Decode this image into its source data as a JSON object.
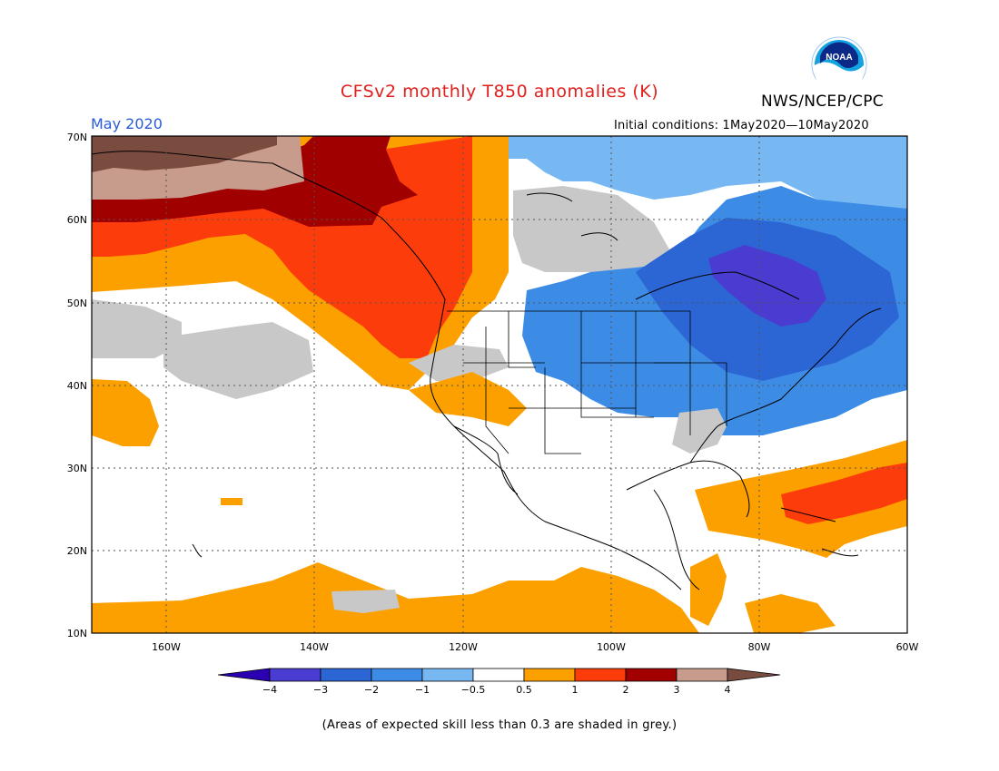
{
  "header": {
    "title": "CFSv2 monthly T850 anomalies (K)",
    "org": "NWS/NCEP/CPC",
    "logo_text": "NOAA",
    "period": "May 2020",
    "initial_conditions": "Initial conditions: 1May2020—10May2020"
  },
  "axes": {
    "lat_labels": [
      "70N",
      "60N",
      "50N",
      "40N",
      "30N",
      "20N",
      "10N"
    ],
    "lon_labels": [
      "160W",
      "140W",
      "120W",
      "100W",
      "80W",
      "60W"
    ]
  },
  "colorbar": {
    "tick_labels": [
      "−4",
      "−3",
      "−2",
      "−1",
      "−0.5",
      "0.5",
      "1",
      "2",
      "3",
      "4"
    ],
    "colors": [
      "#2a00b0",
      "#4a3cd0",
      "#2c66d4",
      "#3c8ce6",
      "#78b8f2",
      "#ffffff",
      "#fca000",
      "#fc3c0a",
      "#a00000",
      "#c89c8c",
      "#7a4c40"
    ]
  },
  "footer": {
    "note": "(Areas of expected skill less than 0.3 are shaded in grey.)"
  },
  "map_colors": {
    "brown": "#7a4c40",
    "rosy": "#c89c8c",
    "darkred": "#a00000",
    "red": "#fc3c0a",
    "orange": "#fca000",
    "grey": "#c8c8c8",
    "paleblue": "#78b8f2",
    "lightblue": "#3c8ce6",
    "blue": "#2c66d4",
    "purple": "#4a3cd0"
  }
}
